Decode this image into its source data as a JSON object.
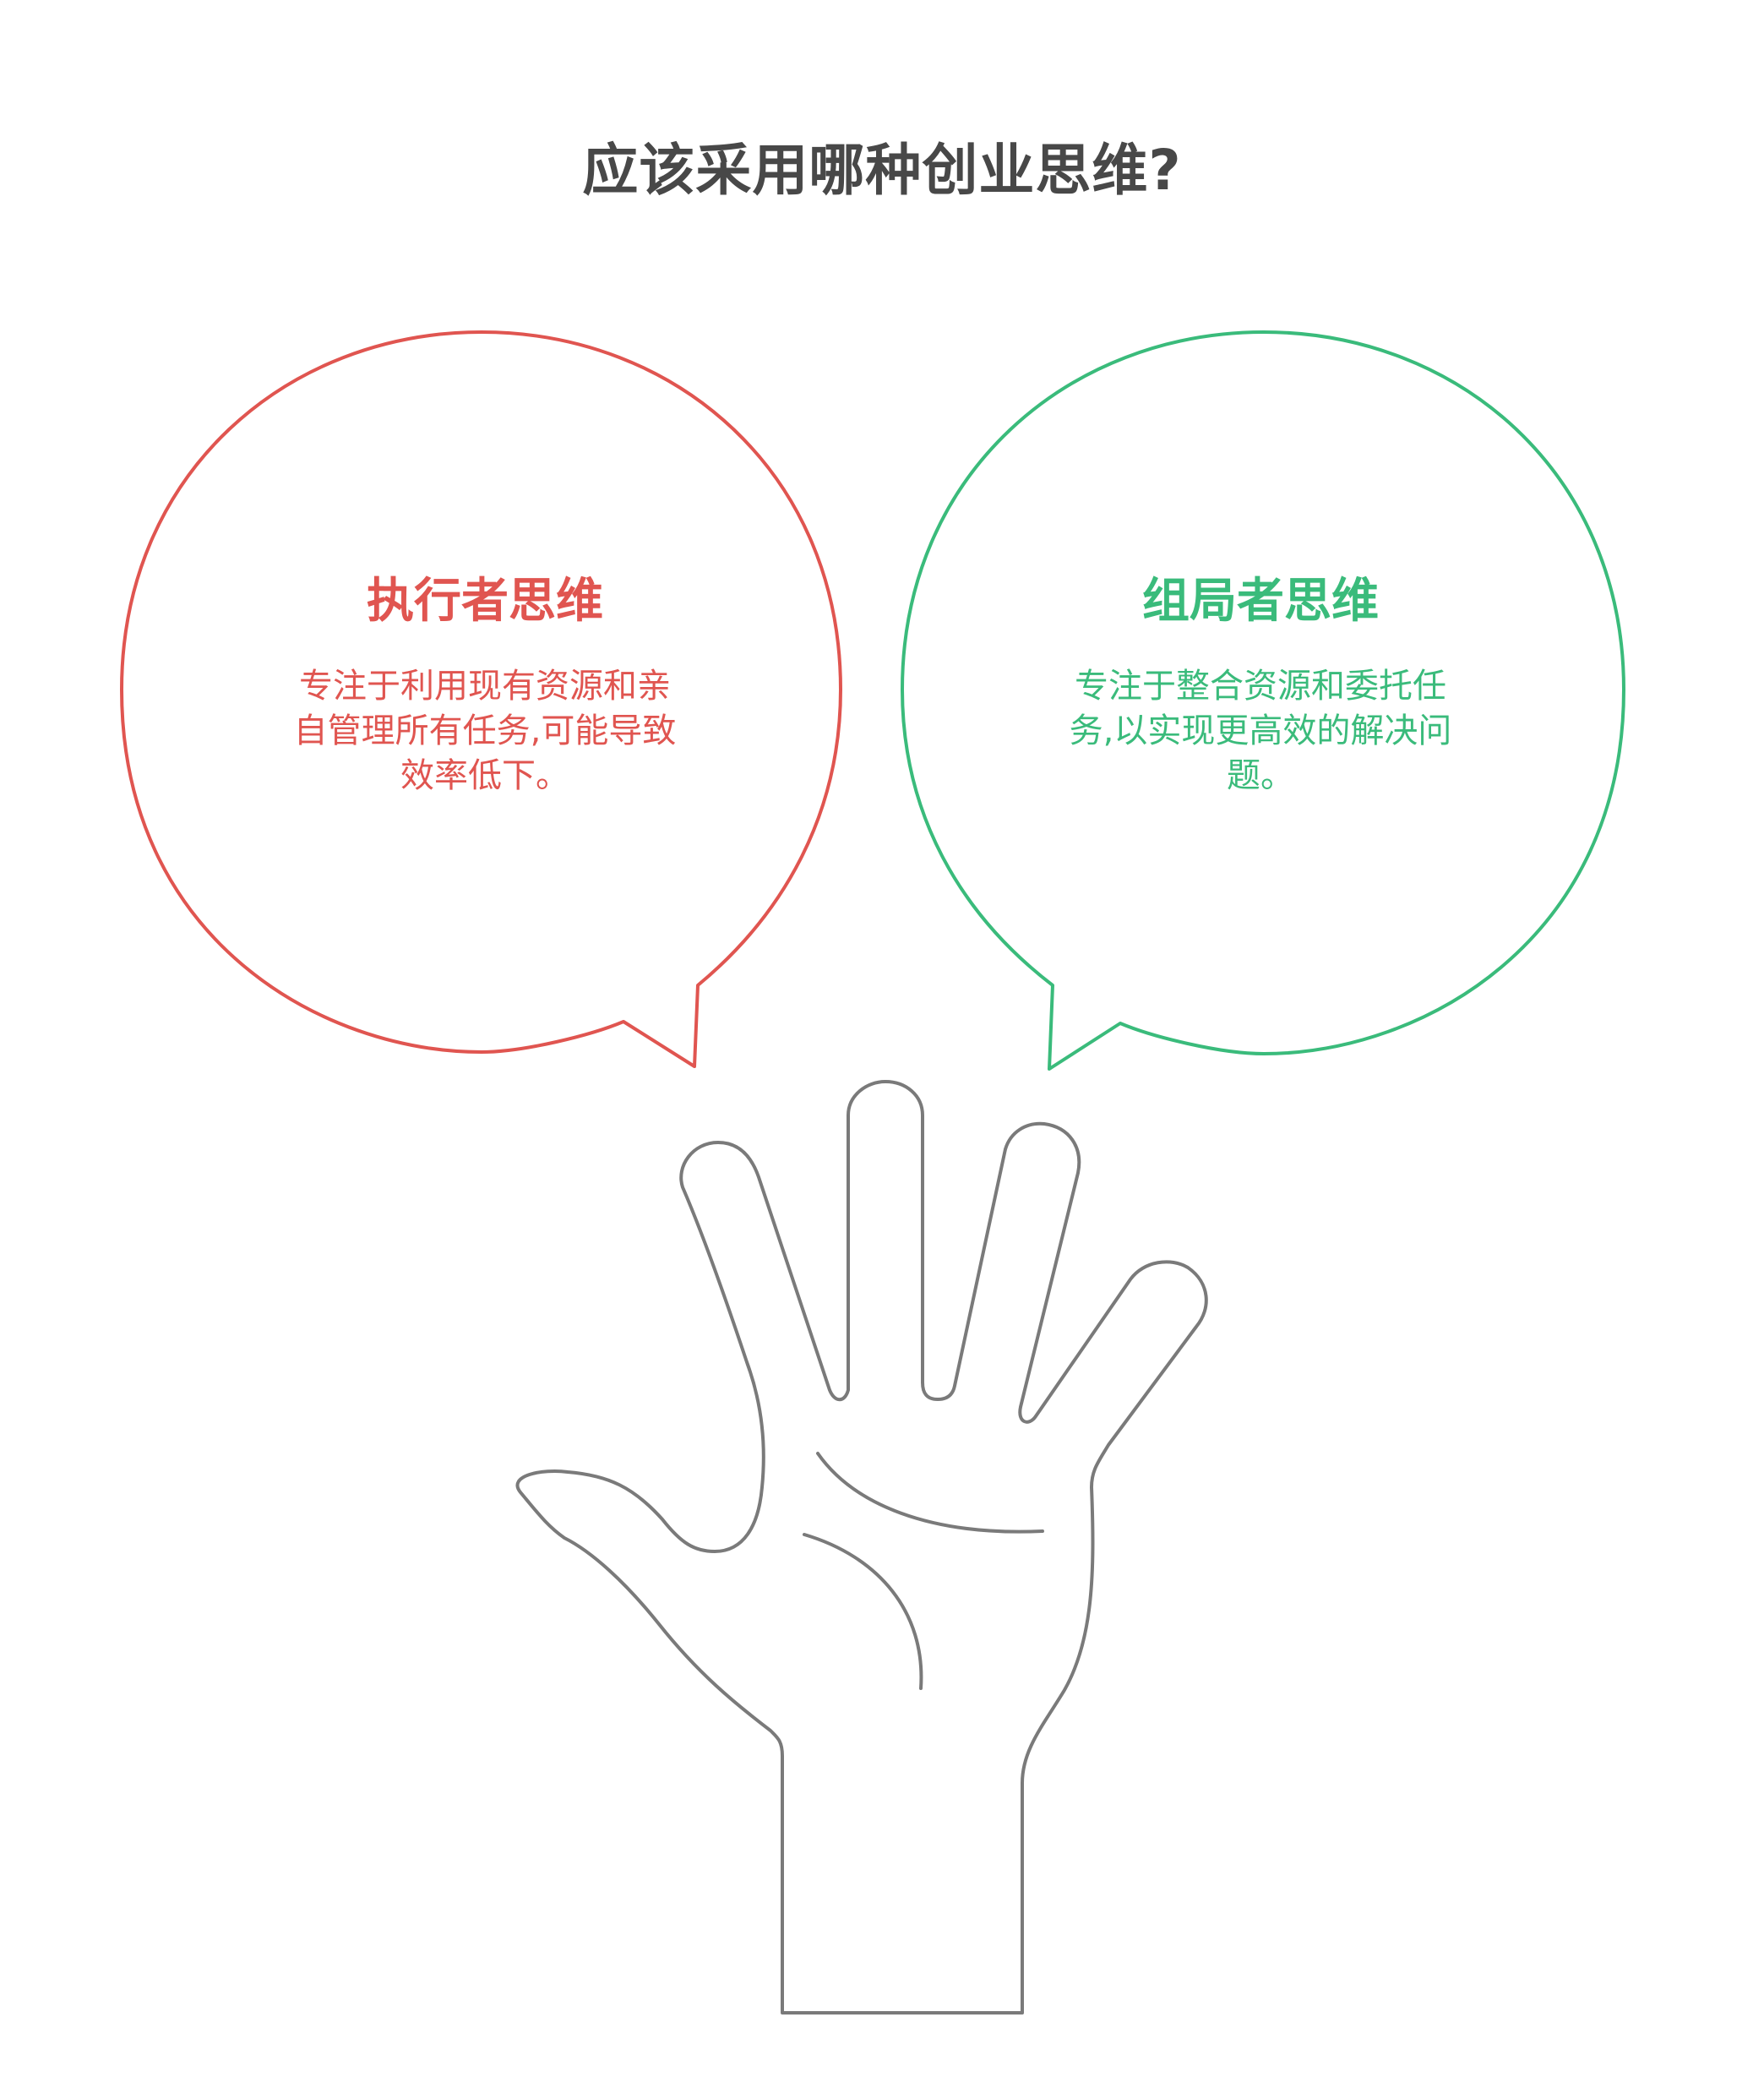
{
  "title": "应该采用哪种创业思维?",
  "colors": {
    "left_accent": "#e05550",
    "right_accent": "#3abb7b",
    "hand_stroke": "#7a7a7a",
    "title": "#484848"
  },
  "left_bubble": {
    "heading": "执行者思维",
    "body": "专注于利用现有资源和亲自管理所有任务,可能导致效率低下。"
  },
  "right_bubble": {
    "heading": "组局者思维",
    "body": "专注于整合资源和委托任务,以实现更高效的解决问题。"
  },
  "icons": {
    "hand": "open-hand-icon"
  }
}
